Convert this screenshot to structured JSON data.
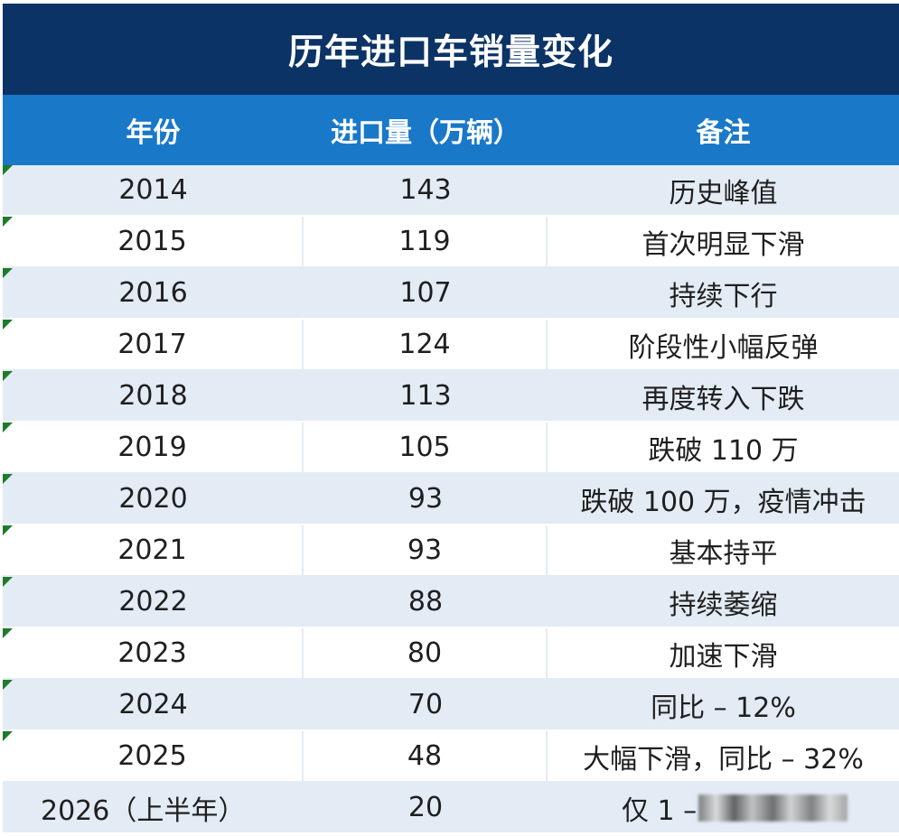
{
  "title": "历年进口车销量变化",
  "headers": {
    "year": "年份",
    "quantity": "进口量（万辆）",
    "note": "备注"
  },
  "rows": [
    {
      "year": "2014",
      "quantity": "143",
      "note": "历史峰值"
    },
    {
      "year": "2015",
      "quantity": "119",
      "note": "首次明显下滑"
    },
    {
      "year": "2016",
      "quantity": "107",
      "note": "持续下行"
    },
    {
      "year": "2017",
      "quantity": "124",
      "note": "阶段性小幅反弹"
    },
    {
      "year": "2018",
      "quantity": "113",
      "note": "再度转入下跌"
    },
    {
      "year": "2019",
      "quantity": "105",
      "note": "跌破 110 万"
    },
    {
      "year": "2020",
      "quantity": "93",
      "note": "跌破 100 万，疫情冲击"
    },
    {
      "year": "2021",
      "quantity": "93",
      "note": "基本持平"
    },
    {
      "year": "2022",
      "quantity": "88",
      "note": "持续萎缩"
    },
    {
      "year": "2023",
      "quantity": "80",
      "note": "加速下滑"
    },
    {
      "year": "2024",
      "quantity": "70",
      "note": "同比 – 12%"
    },
    {
      "year": "2025",
      "quantity": "48",
      "note": "大幅下滑，同比 – 32%"
    },
    {
      "year": "2026（上半年）",
      "quantity": "20",
      "note": "仅 1 –"
    }
  ],
  "colors": {
    "title_bg": "#0b3366",
    "header_bg": "#1978c8",
    "row_shaded": "#e3ebf4",
    "row_plain": "#ffffff",
    "corner_marker": "#1e7b2a"
  }
}
